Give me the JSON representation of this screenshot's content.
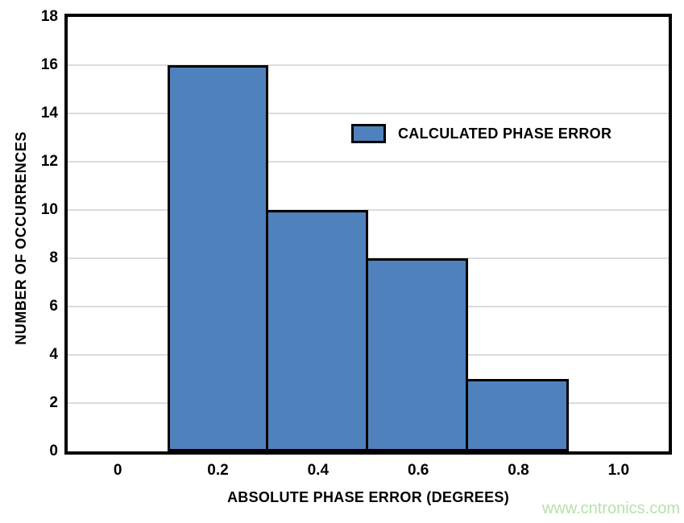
{
  "watermark": {
    "text": "www.cntronics.com",
    "color": "#b7e2a7"
  },
  "chart_data": {
    "type": "bar",
    "title": "",
    "xlabel": "ABSOLUTE PHASE ERROR (DEGREES)",
    "ylabel": "NUMBER OF OCCURRENCES",
    "legend": [
      {
        "label": "CALCULATED PHASE ERROR",
        "color": "#4f81bd"
      }
    ],
    "legend_position": "inside-upper-middle",
    "bins": {
      "centers": [
        0.2,
        0.4,
        0.6,
        0.8
      ],
      "width": 0.2,
      "counts": [
        16,
        10,
        8,
        3
      ]
    },
    "x_ticks": [
      {
        "value": 0.0,
        "label": "0"
      },
      {
        "value": 0.2,
        "label": "0.2"
      },
      {
        "value": 0.4,
        "label": "0.4"
      },
      {
        "value": 0.6,
        "label": "0.6"
      },
      {
        "value": 0.8,
        "label": "0.8"
      },
      {
        "value": 1.0,
        "label": "1.0"
      }
    ],
    "y_ticks": [
      {
        "value": 0,
        "label": "0"
      },
      {
        "value": 2,
        "label": "2"
      },
      {
        "value": 4,
        "label": "4"
      },
      {
        "value": 6,
        "label": "6"
      },
      {
        "value": 8,
        "label": "8"
      },
      {
        "value": 10,
        "label": "10"
      },
      {
        "value": 12,
        "label": "12"
      },
      {
        "value": 14,
        "label": "14"
      },
      {
        "value": 16,
        "label": "16"
      },
      {
        "value": 18,
        "label": "18"
      }
    ],
    "x_range": [
      -0.1,
      1.1
    ],
    "y_range": [
      0,
      18
    ],
    "grid": "horizontal",
    "colors": {
      "bar_fill": "#4f81bd",
      "bar_border": "#000000",
      "gridline": "#dbdbdb",
      "axis_frame": "#000000",
      "text": "#000000"
    }
  }
}
